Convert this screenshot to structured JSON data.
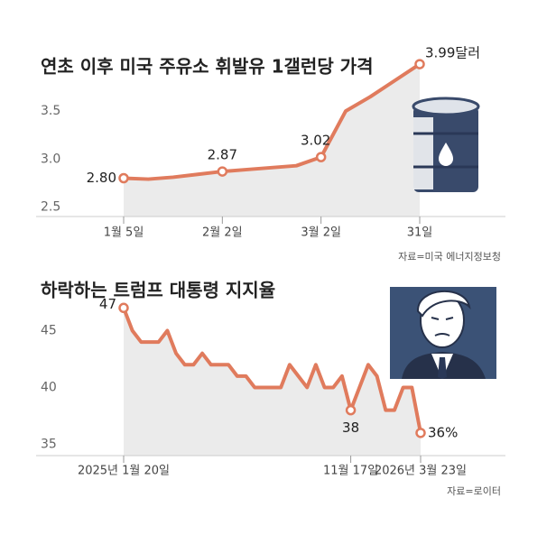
{
  "chart_data": [
    {
      "type": "line",
      "title": "연초 이후 미국 주유소 휘발유 1갤런당 가격",
      "categories": [
        "1월 5일",
        null,
        null,
        null,
        "2월 2일",
        null,
        null,
        null,
        "3월 2일",
        null,
        null,
        null,
        "31일"
      ],
      "series": [
        {
          "color": "#e07b5d",
          "values": [
            2.8,
            2.79,
            2.81,
            2.84,
            2.87,
            2.89,
            2.91,
            2.93,
            3.02,
            3.5,
            3.65,
            3.82,
            3.99
          ],
          "value_labels": [
            "2.80",
            null,
            null,
            null,
            "2.87",
            null,
            null,
            null,
            "3.02",
            null,
            null,
            null,
            "3.99달러"
          ]
        }
      ],
      "ylim": [
        2.4,
        4.0
      ],
      "yticks": [
        2.5,
        {
          "value": 3.0,
          "label": "3.0"
        },
        3.5
      ],
      "source": "자료=미국 에너지정보청"
    },
    {
      "type": "line",
      "title": "하락하는 트럼프 대통령 지지율",
      "categories": [
        "2025년 1월 20일",
        null,
        null,
        null,
        null,
        null,
        null,
        null,
        null,
        null,
        null,
        null,
        null,
        null,
        null,
        null,
        null,
        null,
        null,
        null,
        null,
        null,
        null,
        null,
        null,
        null,
        "11월 17일",
        null,
        null,
        null,
        null,
        null,
        null,
        null,
        "2026년 3월 23일"
      ],
      "series": [
        {
          "color": "#e07b5d",
          "values": [
            47,
            45,
            44,
            44,
            44,
            45,
            43,
            42,
            42,
            43,
            42,
            42,
            42,
            41,
            41,
            40,
            40,
            40,
            40,
            42,
            41,
            40,
            42,
            40,
            40,
            41,
            38,
            40,
            42,
            41,
            38,
            38,
            40,
            40,
            36
          ],
          "value_labels": [
            "47",
            null,
            null,
            null,
            null,
            null,
            null,
            null,
            null,
            null,
            null,
            null,
            null,
            null,
            null,
            null,
            null,
            null,
            null,
            null,
            null,
            null,
            null,
            null,
            null,
            null,
            "38",
            null,
            null,
            null,
            null,
            null,
            null,
            null,
            "36%"
          ]
        }
      ],
      "ylim": [
        34,
        47.5
      ],
      "yticks": [
        35,
        40,
        45
      ],
      "source": "자료=로이터"
    }
  ]
}
